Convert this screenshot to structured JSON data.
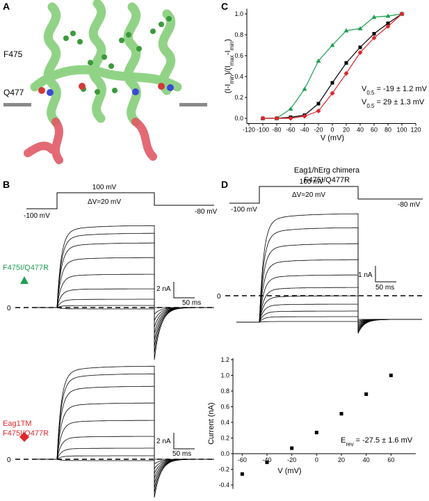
{
  "figure": {
    "panel_labels": [
      "A",
      "B",
      "C",
      "D"
    ],
    "structure_labels": [
      "F475",
      "Q477"
    ],
    "protocol_b": {
      "top": "100 mV",
      "step": "ΔV=20 mV",
      "start": "-100 mV",
      "end": "-80 mV"
    },
    "traces_b1": {
      "label": [
        "F475I/Q477R"
      ],
      "zero": "0",
      "scale_current": "2 nA",
      "scale_time": "50 ms"
    },
    "traces_b2": {
      "label": [
        "Eag1TM",
        "F475I/Q477R"
      ],
      "zero": "0",
      "scale_current": "2 nA",
      "scale_time": "50 ms"
    },
    "panel_d_title": [
      "Eag1/hErg chimera",
      "F475I/Q477R"
    ],
    "protocol_d": {
      "top": "100 mV",
      "step": "ΔV=20 mV",
      "start": "-100 mV",
      "end": "-80 mV"
    },
    "traces_d": {
      "zero": "0",
      "scale_current": "1 nA",
      "scale_time": "50 ms"
    }
  },
  "chart_data": [
    {
      "type": "line",
      "x": [
        -100,
        -80,
        -60,
        -40,
        -20,
        0,
        20,
        40,
        60,
        80,
        100
      ],
      "series": [
        {
          "color": "#1e9e50",
          "marker": "triangle",
          "values": [
            0,
            0,
            0.09,
            0.28,
            0.55,
            0.7,
            0.84,
            0.86,
            0.97,
            0.98,
            1.0
          ]
        },
        {
          "color": "#000000",
          "marker": "square",
          "values": [
            0,
            0,
            0.01,
            0.03,
            0.14,
            0.34,
            0.53,
            0.68,
            0.81,
            0.91,
            1.0
          ]
        },
        {
          "color": "#e0262c",
          "marker": "diamond",
          "values": [
            0,
            0,
            0,
            0.02,
            0.07,
            0.24,
            0.43,
            0.63,
            0.77,
            0.88,
            1.0
          ]
        }
      ],
      "xlim": [
        -120,
        120
      ],
      "xticks": [
        -120,
        -100,
        -80,
        -60,
        -40,
        -20,
        0,
        20,
        40,
        60,
        80,
        100,
        120
      ],
      "ylim": [
        -0.05,
        1.05
      ],
      "yticks": [
        {
          "value": 0,
          "label": "0.0"
        },
        0.2,
        0.4,
        0.6,
        0.8,
        {
          "value": 1,
          "label": "1.0"
        }
      ],
      "xlabel": "V (mV)",
      "ylabel_parts": [
        "(I-I",
        "min",
        ")/(I",
        "max",
        "-I",
        "min",
        ")"
      ],
      "annotations": [
        {
          "parts": [
            "V",
            "0.5",
            " = -19 ± 1.2 mV"
          ],
          "color": "#1e9e50"
        },
        {
          "parts": [
            "V",
            "0.5",
            " = 29 ± 1.3 mV"
          ],
          "color": "#e0262c"
        }
      ]
    },
    {
      "type": "scatter",
      "x": [
        -60,
        -40,
        -20,
        0,
        20,
        40,
        60
      ],
      "values": [
        -0.26,
        -0.11,
        0.07,
        0.27,
        0.51,
        0.76,
        1.0
      ],
      "color": "#000000",
      "xlim": [
        -67.5,
        80
      ],
      "xticks": [
        -60,
        -40,
        -20,
        0,
        20,
        40,
        60
      ],
      "ylim": [
        -0.45,
        1.22
      ],
      "yticks": [
        -0.4,
        -0.2,
        {
          "value": 0,
          "label": "0.0"
        },
        0.2,
        0.4,
        0.6,
        0.8,
        {
          "value": 1,
          "label": "1.0"
        },
        1.2
      ],
      "xlabel": "V (mV)",
      "ylabel": "Current (nA)",
      "annotations": [
        {
          "parts": [
            "E",
            "rev",
            " = -27.5 ± 1.6 mV"
          ],
          "color": "#000000"
        }
      ]
    }
  ]
}
